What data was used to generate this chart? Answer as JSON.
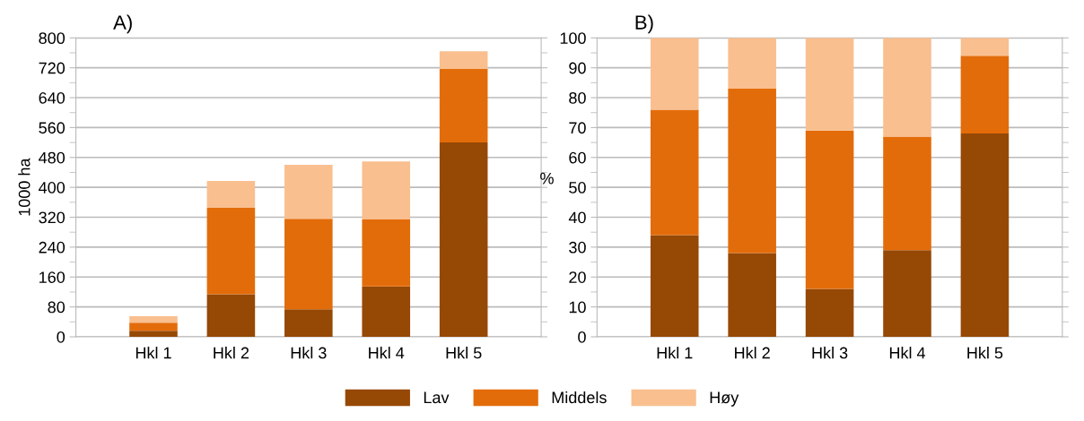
{
  "chart_data": [
    {
      "type": "bar",
      "title": "A)",
      "ylabel": "1000 ha",
      "stacked": true,
      "categories": [
        "Hkl 1",
        "Hkl 2",
        "Hkl 3",
        "Hkl 4",
        "Hkl 5"
      ],
      "ylim": [
        0,
        800
      ],
      "yticks": [
        0,
        80,
        160,
        240,
        320,
        400,
        480,
        560,
        640,
        720,
        800
      ],
      "grid": "y",
      "legend": "bottom",
      "series": [
        {
          "name": "Lav",
          "color": "#964805",
          "values": [
            16,
            114,
            74,
            135,
            520
          ]
        },
        {
          "name": "Middels",
          "color": "#e36c0a",
          "values": [
            22,
            231,
            242,
            179,
            197
          ]
        },
        {
          "name": "Høy",
          "color": "#f9bf8f",
          "values": [
            17,
            72,
            144,
            155,
            47
          ]
        }
      ]
    },
    {
      "type": "bar",
      "title": "B)",
      "ylabel": "%",
      "stacked": true,
      "categories": [
        "Hkl 1",
        "Hkl 2",
        "Hkl 3",
        "Hkl 4",
        "Hkl 5"
      ],
      "ylim": [
        0,
        100
      ],
      "yticks": [
        0,
        10,
        20,
        30,
        40,
        50,
        60,
        70,
        80,
        90,
        100
      ],
      "grid": "y",
      "series": [
        {
          "color": "#964805",
          "values": [
            34,
            28,
            16,
            29,
            68
          ]
        },
        {
          "color": "#e36c0a",
          "values": [
            42,
            55,
            53,
            38,
            26
          ]
        },
        {
          "color": "#f9bf8f",
          "values": [
            24,
            17,
            31,
            33,
            6
          ]
        }
      ]
    }
  ]
}
